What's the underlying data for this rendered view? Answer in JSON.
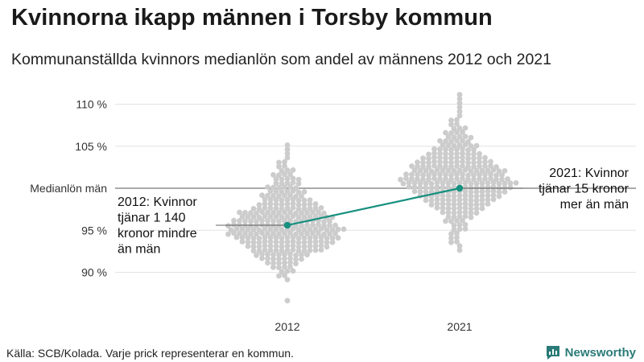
{
  "title": "Kvinnorna ikapp männen i Torsby kommun",
  "subtitle": "Kommunanställda kvinnors medianlön som andel av männens 2012 och 2021",
  "source": "Källa: SCB/Kolada. Varje prick representerar en kommun.",
  "brand": "Newsworthy",
  "colors": {
    "dots": "#cccccc",
    "highlight": "#16907f",
    "brand": "#2a7a78",
    "reference_line": "#555555",
    "grid": "#e3e3e3"
  },
  "chart_data": {
    "type": "scatter",
    "ylim": [
      86,
      112
    ],
    "y_ticks": [
      {
        "value": 90,
        "label": "90 %"
      },
      {
        "value": 95,
        "label": "95 %"
      },
      {
        "value": 105,
        "label": "105 %"
      },
      {
        "value": 110,
        "label": "110 %"
      }
    ],
    "reference_line": {
      "value": 100,
      "label": "Medianlön män"
    },
    "categories": [
      "2012",
      "2021"
    ],
    "distributions": [
      {
        "category": "2012",
        "approx_range": [
          86.5,
          105.3
        ],
        "bins": [
          {
            "y": 86.6,
            "n": 1
          },
          {
            "y": 89.1,
            "n": 1
          },
          {
            "y": 89.6,
            "n": 2
          },
          {
            "y": 90.1,
            "n": 3
          },
          {
            "y": 90.6,
            "n": 4
          },
          {
            "y": 91.1,
            "n": 6
          },
          {
            "y": 91.6,
            "n": 8
          },
          {
            "y": 92.1,
            "n": 10
          },
          {
            "y": 92.6,
            "n": 13
          },
          {
            "y": 93.1,
            "n": 15
          },
          {
            "y": 93.6,
            "n": 17
          },
          {
            "y": 94.1,
            "n": 19
          },
          {
            "y": 94.6,
            "n": 20
          },
          {
            "y": 95.1,
            "n": 21
          },
          {
            "y": 95.6,
            "n": 20
          },
          {
            "y": 96.1,
            "n": 18
          },
          {
            "y": 96.6,
            "n": 17
          },
          {
            "y": 97.1,
            "n": 16
          },
          {
            "y": 97.6,
            "n": 13
          },
          {
            "y": 98.1,
            "n": 11
          },
          {
            "y": 98.6,
            "n": 9
          },
          {
            "y": 99.1,
            "n": 8
          },
          {
            "y": 99.6,
            "n": 7
          },
          {
            "y": 100.1,
            "n": 6
          },
          {
            "y": 100.6,
            "n": 5
          },
          {
            "y": 101.1,
            "n": 5
          },
          {
            "y": 101.6,
            "n": 4
          },
          {
            "y": 102.1,
            "n": 3
          },
          {
            "y": 102.6,
            "n": 2
          },
          {
            "y": 103.1,
            "n": 2
          },
          {
            "y": 103.6,
            "n": 1
          },
          {
            "y": 104.1,
            "n": 1
          },
          {
            "y": 104.6,
            "n": 1
          },
          {
            "y": 105.1,
            "n": 1
          }
        ]
      },
      {
        "category": "2021",
        "approx_range": [
          92.6,
          111.2
        ],
        "bins": [
          {
            "y": 92.6,
            "n": 1
          },
          {
            "y": 93.1,
            "n": 1
          },
          {
            "y": 93.6,
            "n": 2
          },
          {
            "y": 94.1,
            "n": 2
          },
          {
            "y": 94.6,
            "n": 2
          },
          {
            "y": 95.1,
            "n": 3
          },
          {
            "y": 95.6,
            "n": 3
          },
          {
            "y": 96.1,
            "n": 4
          },
          {
            "y": 96.6,
            "n": 5
          },
          {
            "y": 97.1,
            "n": 7
          },
          {
            "y": 97.6,
            "n": 9
          },
          {
            "y": 98.1,
            "n": 11
          },
          {
            "y": 98.6,
            "n": 13
          },
          {
            "y": 99.1,
            "n": 15
          },
          {
            "y": 99.6,
            "n": 17
          },
          {
            "y": 100.1,
            "n": 19
          },
          {
            "y": 100.6,
            "n": 21
          },
          {
            "y": 101.1,
            "n": 20
          },
          {
            "y": 101.6,
            "n": 18
          },
          {
            "y": 102.1,
            "n": 17
          },
          {
            "y": 102.6,
            "n": 16
          },
          {
            "y": 103.1,
            "n": 14
          },
          {
            "y": 103.6,
            "n": 12
          },
          {
            "y": 104.1,
            "n": 10
          },
          {
            "y": 104.6,
            "n": 8
          },
          {
            "y": 105.1,
            "n": 7
          },
          {
            "y": 105.6,
            "n": 6
          },
          {
            "y": 106.1,
            "n": 5
          },
          {
            "y": 106.6,
            "n": 4
          },
          {
            "y": 107.1,
            "n": 3
          },
          {
            "y": 107.6,
            "n": 2
          },
          {
            "y": 108.1,
            "n": 2
          },
          {
            "y": 108.6,
            "n": 1
          },
          {
            "y": 109.1,
            "n": 1
          },
          {
            "y": 109.6,
            "n": 1
          },
          {
            "y": 110.1,
            "n": 1
          },
          {
            "y": 110.6,
            "n": 1
          },
          {
            "y": 111.1,
            "n": 1
          }
        ]
      }
    ],
    "highlight": {
      "series": "Torsby",
      "points": [
        {
          "x": "2012",
          "y": 95.6
        },
        {
          "x": "2021",
          "y": 100.0
        }
      ]
    },
    "annotations": [
      {
        "category": "2012",
        "lines": [
          "2012: Kvinnor",
          "tjänar 1 140",
          "kronor mindre",
          "än män"
        ]
      },
      {
        "category": "2021",
        "lines": [
          "2021: Kvinnor",
          "tjänar 15 kronor",
          "mer än män"
        ]
      }
    ]
  }
}
